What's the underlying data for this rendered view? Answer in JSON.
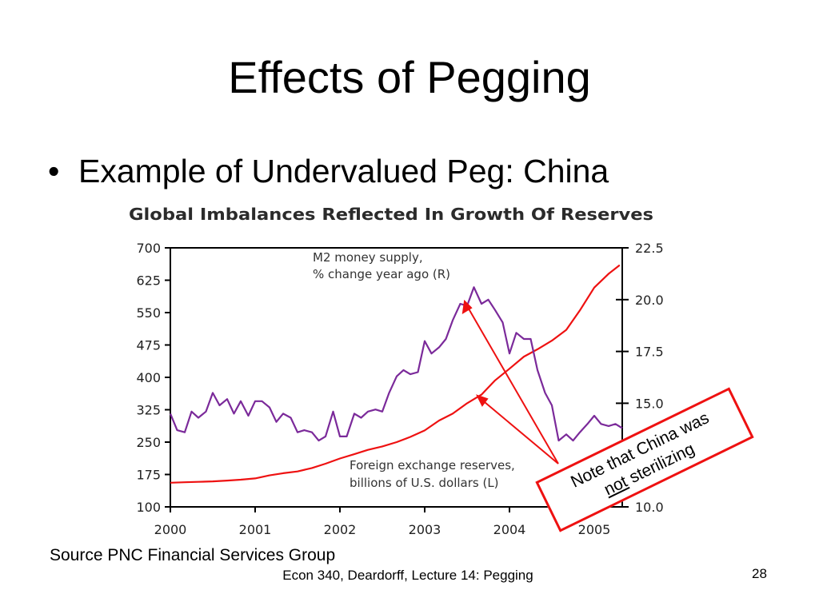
{
  "slide": {
    "title": "Effects of Pegging",
    "bullet": "Example of Undervalued Peg:  China",
    "source": "Source PNC Financial Services Group",
    "footer": "Econ 340, Deardorff, Lecture 14: Pegging",
    "page_number": "28"
  },
  "callout": {
    "line1": "Note that China was",
    "line2_underlined": "not",
    "line2_rest": " sterilizing",
    "color": "#ee1111"
  },
  "chart_data": {
    "type": "line",
    "title": "Global Imbalances Reflected In Growth Of Reserves",
    "x_tick_labels": [
      "2000",
      "2001",
      "2002",
      "2003",
      "2004",
      "2005"
    ],
    "xlim": [
      2000,
      2005.3
    ],
    "left_axis": {
      "ylim": [
        100,
        700
      ],
      "ticks": [
        "100",
        "175",
        "250",
        "325",
        "400",
        "475",
        "550",
        "625",
        "700"
      ]
    },
    "right_axis": {
      "ylim": [
        10.0,
        22.5
      ],
      "ticks": [
        "10.0",
        "12.5",
        "15.0",
        "17.5",
        "20.0",
        "22.5"
      ]
    },
    "grid": false,
    "series": [
      {
        "name": "Foreign exchange reserves, billions of U.S. dollars (L)",
        "axis": "left",
        "color": "#ee1111",
        "x": [
          2000.0,
          2000.17,
          2000.33,
          2000.5,
          2000.67,
          2000.83,
          2001.0,
          2001.17,
          2001.33,
          2001.5,
          2001.67,
          2001.83,
          2002.0,
          2002.17,
          2002.33,
          2002.5,
          2002.67,
          2002.83,
          2003.0,
          2003.17,
          2003.33,
          2003.5,
          2003.67,
          2003.83,
          2004.0,
          2004.17,
          2004.33,
          2004.5,
          2004.67,
          2004.83,
          2005.0,
          2005.17,
          2005.3
        ],
        "values": [
          156,
          157,
          158,
          159,
          161,
          163,
          166,
          173,
          178,
          182,
          190,
          200,
          212,
          222,
          232,
          240,
          250,
          262,
          277,
          300,
          316,
          340,
          360,
          393,
          420,
          448,
          465,
          485,
          510,
          555,
          608,
          640,
          660
        ]
      },
      {
        "name": "M2 money supply, % change year ago (R)",
        "axis": "right",
        "color": "#7b2a9a",
        "x": [
          2000.0,
          2000.08,
          2000.17,
          2000.25,
          2000.33,
          2000.42,
          2000.5,
          2000.58,
          2000.67,
          2000.75,
          2000.83,
          2000.92,
          2001.0,
          2001.08,
          2001.17,
          2001.25,
          2001.33,
          2001.42,
          2001.5,
          2001.58,
          2001.67,
          2001.75,
          2001.83,
          2001.92,
          2002.0,
          2002.08,
          2002.17,
          2002.25,
          2002.33,
          2002.42,
          2002.5,
          2002.58,
          2002.67,
          2002.75,
          2002.83,
          2002.92,
          2003.0,
          2003.08,
          2003.17,
          2003.25,
          2003.33,
          2003.42,
          2003.5,
          2003.58,
          2003.67,
          2003.75,
          2003.83,
          2003.92,
          2004.0,
          2004.08,
          2004.17,
          2004.25,
          2004.33,
          2004.42,
          2004.5,
          2004.58,
          2004.67,
          2004.75,
          2004.83,
          2004.92,
          2005.0,
          2005.08,
          2005.17,
          2005.25,
          2005.33
        ],
        "values": [
          14.5,
          13.7,
          13.6,
          14.6,
          14.3,
          14.6,
          15.5,
          14.9,
          15.2,
          14.5,
          15.1,
          14.4,
          15.1,
          15.1,
          14.8,
          14.1,
          14.5,
          14.3,
          13.6,
          13.7,
          13.6,
          13.2,
          13.4,
          14.6,
          13.4,
          13.4,
          14.5,
          14.3,
          14.6,
          14.7,
          14.6,
          15.5,
          16.3,
          16.6,
          16.4,
          16.5,
          18.0,
          17.4,
          17.7,
          18.1,
          19.0,
          19.8,
          19.7,
          20.6,
          19.8,
          20.0,
          19.5,
          18.9,
          17.4,
          18.4,
          18.1,
          18.1,
          16.6,
          15.5,
          14.9,
          13.2,
          13.5,
          13.2,
          13.6,
          14.0,
          14.4,
          14.0,
          13.9,
          14.0,
          13.8
        ]
      }
    ],
    "annotations": {
      "m2_label_line1": "M2 money supply,",
      "m2_label_line2": "% change year ago (R)",
      "fx_label_line1": "Foreign exchange reserves,",
      "fx_label_line2": "billions of U.S. dollars (L)"
    }
  }
}
